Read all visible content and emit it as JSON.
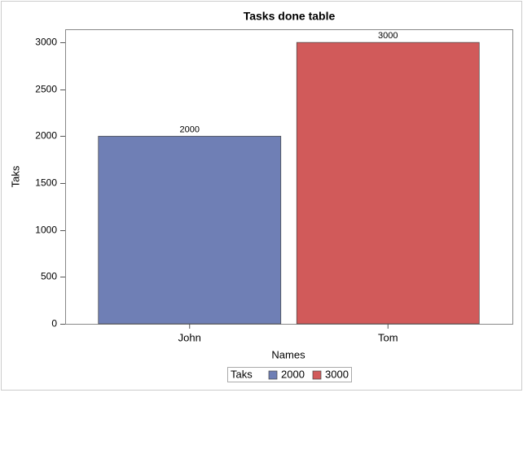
{
  "chart_data": {
    "type": "bar",
    "title": "Tasks done table",
    "x_label": "Names",
    "y_label": "Taks",
    "legend_title": "Taks",
    "categories": [
      "John",
      "Tom"
    ],
    "series": [
      {
        "name": "2000",
        "color": "#6f7fb5",
        "values": [
          2000,
          null
        ]
      },
      {
        "name": "3000",
        "color": "#d15a5a",
        "values": [
          null,
          3000
        ]
      }
    ],
    "ylim": [
      0,
      3140
    ],
    "yticks": [
      0,
      500,
      1000,
      1500,
      2000,
      2500,
      3000
    ],
    "grid": false
  }
}
